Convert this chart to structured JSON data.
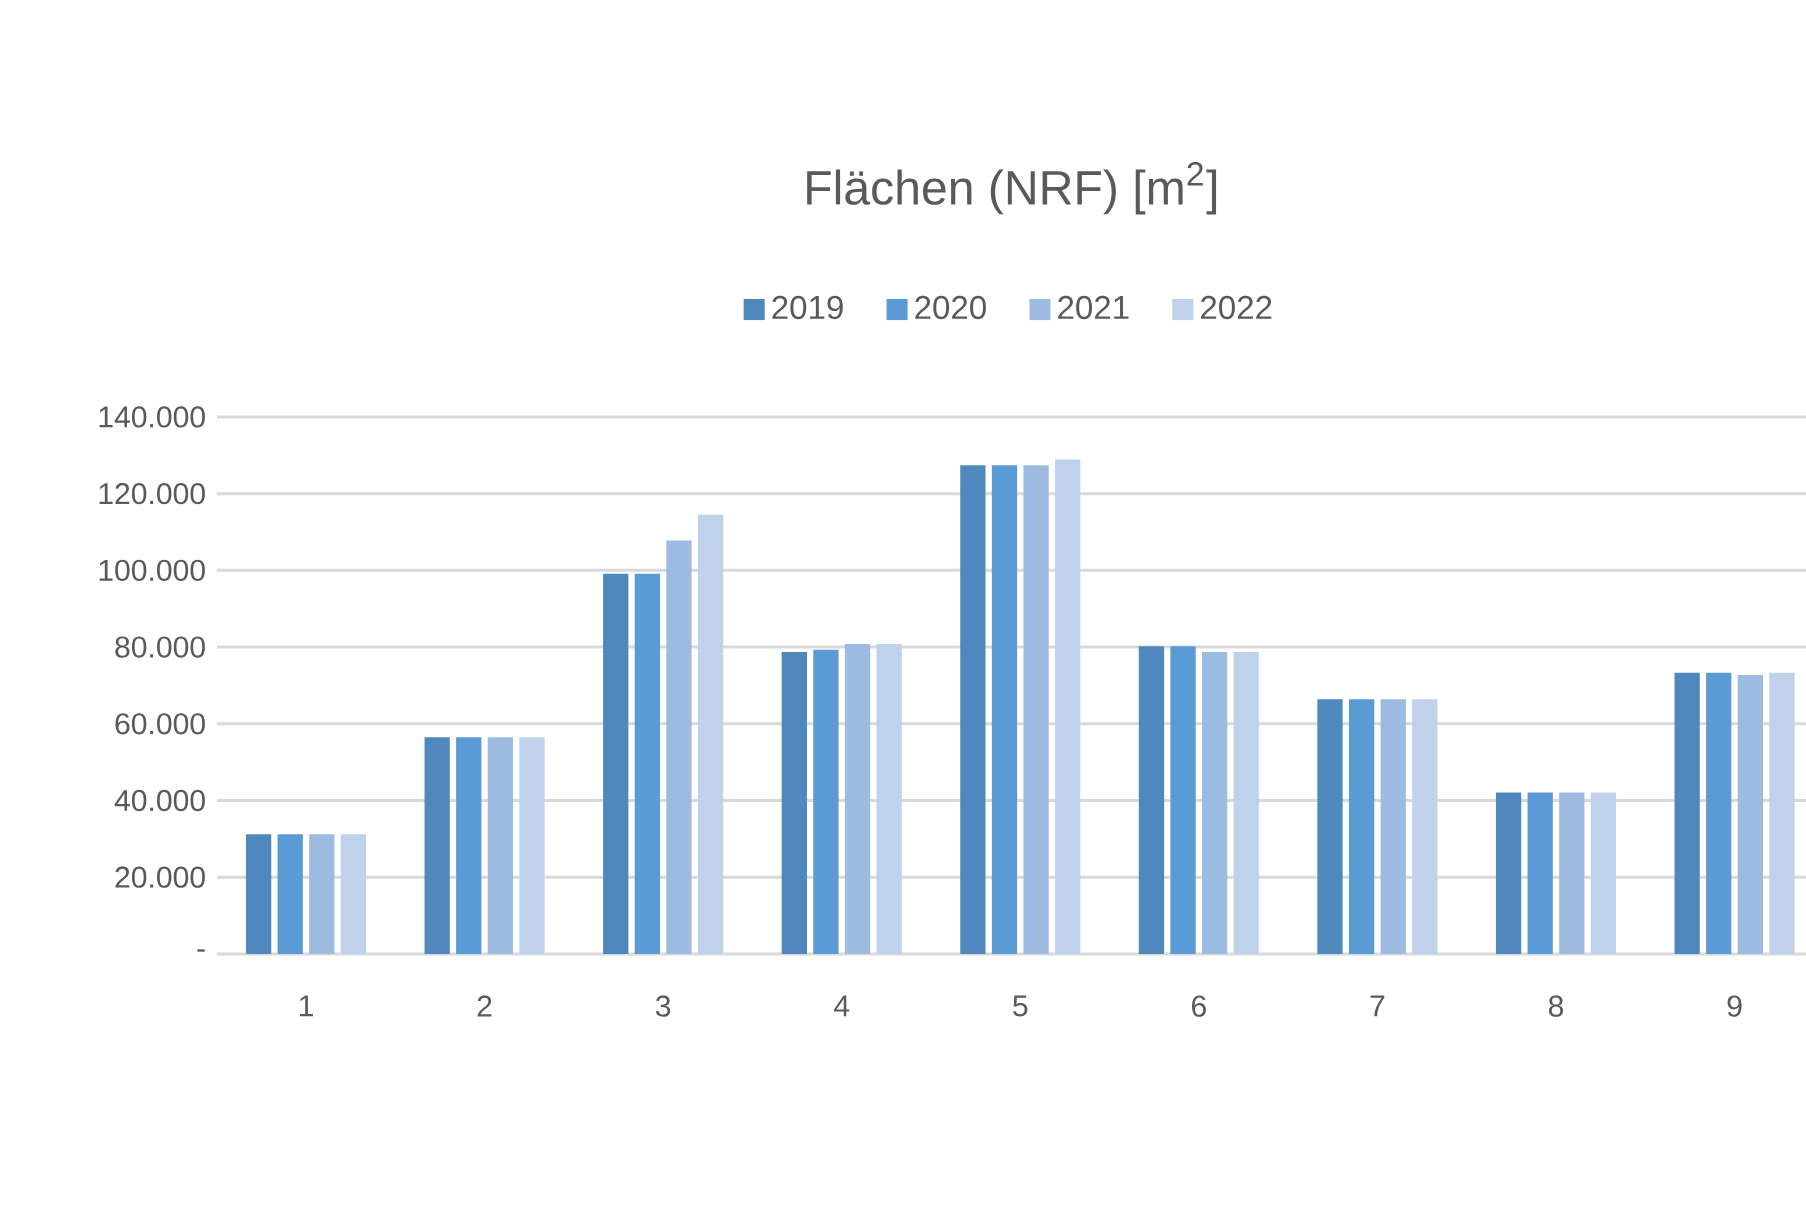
{
  "chart_data": {
    "type": "bar",
    "title": "Flächen (NRF) [m$^{2}$]",
    "categories": [
      "1",
      "2",
      "3",
      "4",
      "5",
      "6",
      "7",
      "8",
      "9"
    ],
    "series": [
      {
        "name": "2019",
        "color": "#4f88bd",
        "values": [
          31200,
          56500,
          99100,
          78700,
          127400,
          80200,
          66400,
          42100,
          73300
        ]
      },
      {
        "name": "2020",
        "color": "#5b9bd5",
        "values": [
          31200,
          56500,
          99100,
          79300,
          127400,
          80200,
          66400,
          42100,
          73300
        ]
      },
      {
        "name": "2021",
        "color": "#9dbbe0",
        "values": [
          31200,
          56500,
          107800,
          80800,
          127400,
          78700,
          66400,
          42100,
          72700
        ]
      },
      {
        "name": "2022",
        "color": "#bfd2eb",
        "values": [
          31200,
          56500,
          114500,
          80800,
          128900,
          78700,
          66400,
          42100,
          73300
        ]
      }
    ],
    "ylim": [
      0,
      140000
    ],
    "yticks": [
      {
        "value": 0,
        "label": "-"
      },
      {
        "value": 20000,
        "label": "20.000"
      },
      {
        "value": 40000,
        "label": "40.000"
      },
      {
        "value": 60000,
        "label": "60.000"
      },
      {
        "value": 80000,
        "label": "80.000"
      },
      {
        "value": 100000,
        "label": "100.000"
      },
      {
        "value": 120000,
        "label": "120.000"
      },
      {
        "value": 140000,
        "label": "140.000"
      }
    ],
    "grid": "y",
    "legend": "top"
  }
}
